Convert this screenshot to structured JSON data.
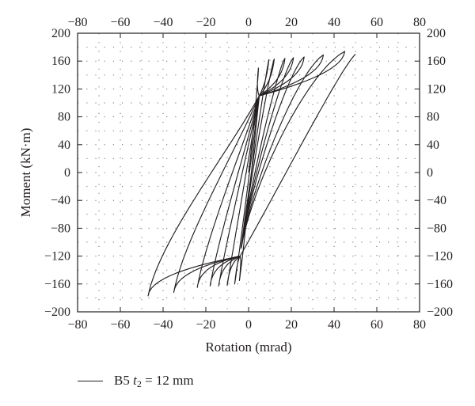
{
  "chart_data": {
    "type": "line",
    "xlabel": "Rotation (mrad)",
    "ylabel": "Moment (kN·m)",
    "xlim": [
      -80,
      80
    ],
    "ylim": [
      -200,
      200
    ],
    "xticks": [
      -80,
      -60,
      -40,
      -20,
      0,
      20,
      40,
      60,
      80
    ],
    "yticks": [
      -200,
      -160,
      -120,
      -80,
      -40,
      0,
      40,
      80,
      120,
      160,
      200
    ],
    "x_tick_labels": [
      "−80",
      "−60",
      "−40",
      "−20",
      "0",
      "20",
      "40",
      "60",
      "80"
    ],
    "y_tick_labels": [
      "−200",
      "−160",
      "−120",
      "−80",
      "−40",
      "0",
      "40",
      "80",
      "120",
      "160",
      "200"
    ],
    "top_axis": true,
    "right_axis": true,
    "grid": "dotted",
    "legend_position": "bottom-left",
    "line_color": "#231f20",
    "series": [
      {
        "name": "B5 t2 = 12 mm",
        "cycles": [
          {
            "amp_pos": 4.6,
            "amp_neg": -4.3,
            "peak_pos": 150,
            "peak_neg": -155
          },
          {
            "amp_pos": 9.5,
            "amp_neg": -6.5,
            "peak_pos": 162,
            "peak_neg": -160
          },
          {
            "amp_pos": 12,
            "amp_neg": -10,
            "peak_pos": 163,
            "peak_neg": -162
          },
          {
            "amp_pos": 17,
            "amp_neg": -14,
            "peak_pos": 164,
            "peak_neg": -163
          },
          {
            "amp_pos": 21,
            "amp_neg": -18,
            "peak_pos": 165,
            "peak_neg": -163
          },
          {
            "amp_pos": 26,
            "amp_neg": -24,
            "peak_pos": 166,
            "peak_neg": -165
          },
          {
            "amp_pos": 35,
            "amp_neg": -35,
            "peak_pos": 169,
            "peak_neg": -172
          },
          {
            "amp_pos": 45,
            "amp_neg": -47,
            "peak_pos": 174,
            "peak_neg": -177
          }
        ],
        "end_point": [
          50,
          170
        ]
      }
    ],
    "legend": {
      "prefix": "B5 ",
      "var": "t",
      "sub": "2",
      "suffix": " = 12 mm"
    }
  }
}
